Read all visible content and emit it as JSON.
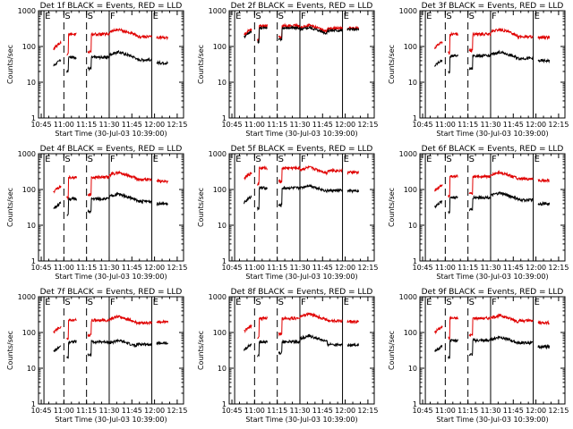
{
  "chart_data": [
    {
      "type": "line",
      "title": "Det 1f BLACK = Events, RED = LLD",
      "detector": "1f",
      "xlabel": "Start Time (30-Jul-03 10:39:00)",
      "ylabel": "Counts/sec",
      "xlim": [
        10.72,
        12.32
      ],
      "ylim": [
        1,
        1000
      ],
      "ylog": true,
      "xticks": [
        "10:45",
        "11:00",
        "11:15",
        "11:30",
        "11:45",
        "12:00",
        "12:15"
      ],
      "yticks": [
        "1",
        "10",
        "100",
        "1000"
      ],
      "series": [
        {
          "name": "Events",
          "color": "#000000",
          "pre": 40,
          "plat": 50,
          "hump": 70,
          "post": 35
        },
        {
          "name": "LLD",
          "color": "#e00000",
          "pre": 120,
          "plat": 220,
          "hump": 300,
          "post": 180
        }
      ],
      "events": [
        {
          "label": "E",
          "t": 10.78,
          "style": "solid"
        },
        {
          "label": "S",
          "t": 11.0,
          "style": "dashed"
        },
        {
          "label": "S",
          "t": 11.25,
          "style": "dashed"
        },
        {
          "label": "F",
          "t": 11.5,
          "style": "solid"
        },
        {
          "label": "E",
          "t": 11.97,
          "style": "solid"
        }
      ]
    },
    {
      "type": "line",
      "title": "Det 2f BLACK = Events, RED = LLD",
      "detector": "2f",
      "xlabel": "Start Time (30-Jul-03 10:39:00)",
      "ylabel": "Counts/sec",
      "xlim": [
        10.72,
        12.32
      ],
      "ylim": [
        1,
        1000
      ],
      "ylog": true,
      "xticks": [
        "10:45",
        "11:00",
        "11:15",
        "11:30",
        "11:45",
        "12:00",
        "12:15"
      ],
      "yticks": [
        "1",
        "10",
        "100",
        "1000"
      ],
      "series": [
        {
          "name": "Events",
          "color": "#000000",
          "pre": 260,
          "plat": 330,
          "hump": 340,
          "post": 300
        },
        {
          "name": "LLD",
          "color": "#e00000",
          "pre": 300,
          "plat": 380,
          "hump": 390,
          "post": 320
        }
      ],
      "events": [
        {
          "label": "E",
          "t": 10.78,
          "style": "solid"
        },
        {
          "label": "S",
          "t": 11.0,
          "style": "dashed"
        },
        {
          "label": "S",
          "t": 11.25,
          "style": "dashed"
        },
        {
          "label": "F",
          "t": 11.5,
          "style": "solid"
        },
        {
          "label": "E",
          "t": 11.97,
          "style": "solid"
        }
      ]
    },
    {
      "type": "line",
      "title": "Det 3f BLACK = Events, RED = LLD",
      "detector": "3f",
      "xlabel": "Start Time (30-Jul-03 10:39:00)",
      "ylabel": "Counts/sec",
      "xlim": [
        10.72,
        12.32
      ],
      "ylim": [
        1,
        1000
      ],
      "ylog": true,
      "xticks": [
        "10:45",
        "11:00",
        "11:15",
        "11:30",
        "11:45",
        "12:00",
        "12:15"
      ],
      "yticks": [
        "1",
        "10",
        "100",
        "1000"
      ],
      "series": [
        {
          "name": "Events",
          "color": "#000000",
          "pre": 40,
          "plat": 55,
          "hump": 70,
          "post": 40
        },
        {
          "name": "LLD",
          "color": "#e00000",
          "pre": 130,
          "plat": 220,
          "hump": 300,
          "post": 180
        }
      ],
      "events": [
        {
          "label": "E",
          "t": 10.78,
          "style": "solid"
        },
        {
          "label": "S",
          "t": 11.0,
          "style": "dashed"
        },
        {
          "label": "S",
          "t": 11.25,
          "style": "dashed"
        },
        {
          "label": "F",
          "t": 11.5,
          "style": "solid"
        },
        {
          "label": "E",
          "t": 11.97,
          "style": "solid"
        }
      ]
    },
    {
      "type": "line",
      "title": "Det 4f BLACK = Events, RED = LLD",
      "detector": "4f",
      "xlabel": "Start Time (30-Jul-03 10:39:00)",
      "ylabel": "Counts/sec",
      "xlim": [
        10.72,
        12.32
      ],
      "ylim": [
        1,
        1000
      ],
      "ylog": true,
      "xticks": [
        "10:45",
        "11:00",
        "11:15",
        "11:30",
        "11:45",
        "12:00",
        "12:15"
      ],
      "yticks": [
        "1",
        "10",
        "100",
        "1000"
      ],
      "series": [
        {
          "name": "Events",
          "color": "#000000",
          "pre": 40,
          "plat": 55,
          "hump": 75,
          "post": 40
        },
        {
          "name": "LLD",
          "color": "#e00000",
          "pre": 120,
          "plat": 220,
          "hump": 300,
          "post": 170
        }
      ],
      "events": [
        {
          "label": "E",
          "t": 10.78,
          "style": "solid"
        },
        {
          "label": "S",
          "t": 11.0,
          "style": "dashed"
        },
        {
          "label": "S",
          "t": 11.25,
          "style": "dashed"
        },
        {
          "label": "F",
          "t": 11.5,
          "style": "solid"
        },
        {
          "label": "E",
          "t": 11.97,
          "style": "solid"
        }
      ]
    },
    {
      "type": "line",
      "title": "Det 5f BLACK = Events, RED = LLD",
      "detector": "5f",
      "xlabel": "Start Time (30-Jul-03 10:39:00)",
      "ylabel": "Counts/sec",
      "xlim": [
        10.72,
        12.32
      ],
      "ylim": [
        1,
        1000
      ],
      "ylog": true,
      "xticks": [
        "10:45",
        "11:00",
        "11:15",
        "11:30",
        "11:45",
        "12:00",
        "12:15"
      ],
      "yticks": [
        "1",
        "10",
        "100",
        "1000"
      ],
      "series": [
        {
          "name": "Events",
          "color": "#000000",
          "pre": 60,
          "plat": 110,
          "hump": 130,
          "post": 90
        },
        {
          "name": "LLD",
          "color": "#e00000",
          "pre": 280,
          "plat": 400,
          "hump": 420,
          "post": 300
        }
      ],
      "events": [
        {
          "label": "E",
          "t": 10.78,
          "style": "solid"
        },
        {
          "label": "S",
          "t": 11.0,
          "style": "dashed"
        },
        {
          "label": "S",
          "t": 11.25,
          "style": "dashed"
        },
        {
          "label": "F",
          "t": 11.5,
          "style": "solid"
        },
        {
          "label": "E",
          "t": 11.97,
          "style": "solid"
        }
      ]
    },
    {
      "type": "line",
      "title": "Det 6f BLACK = Events, RED = LLD",
      "detector": "6f",
      "xlabel": "Start Time (30-Jul-03 10:39:00)",
      "ylabel": "Counts/sec",
      "xlim": [
        10.72,
        12.32
      ],
      "ylim": [
        1,
        1000
      ],
      "ylog": true,
      "xticks": [
        "10:45",
        "11:00",
        "11:15",
        "11:30",
        "11:45",
        "12:00",
        "12:15"
      ],
      "yticks": [
        "1",
        "10",
        "100",
        "1000"
      ],
      "series": [
        {
          "name": "Events",
          "color": "#000000",
          "pre": 45,
          "plat": 60,
          "hump": 80,
          "post": 40
        },
        {
          "name": "LLD",
          "color": "#e00000",
          "pre": 130,
          "plat": 230,
          "hump": 300,
          "post": 180
        }
      ],
      "events": [
        {
          "label": "E",
          "t": 10.78,
          "style": "solid"
        },
        {
          "label": "S",
          "t": 11.0,
          "style": "dashed"
        },
        {
          "label": "S",
          "t": 11.25,
          "style": "dashed"
        },
        {
          "label": "F",
          "t": 11.5,
          "style": "solid"
        },
        {
          "label": "E",
          "t": 11.97,
          "style": "solid"
        }
      ]
    },
    {
      "type": "line",
      "title": "Det 7f BLACK = Events, RED = LLD",
      "detector": "7f",
      "xlabel": "Start Time (30-Jul-03 10:39:00)",
      "ylabel": "Counts/sec",
      "xlim": [
        10.72,
        12.32
      ],
      "ylim": [
        1,
        1000
      ],
      "ylog": true,
      "xticks": [
        "10:45",
        "11:00",
        "11:15",
        "11:30",
        "11:45",
        "12:00",
        "12:15"
      ],
      "yticks": [
        "1",
        "10",
        "100",
        "1000"
      ],
      "series": [
        {
          "name": "Events",
          "color": "#000000",
          "pre": 40,
          "plat": 55,
          "hump": 60,
          "post": 50
        },
        {
          "name": "LLD",
          "color": "#e00000",
          "pre": 140,
          "plat": 220,
          "hump": 280,
          "post": 200
        }
      ],
      "events": [
        {
          "label": "E",
          "t": 10.78,
          "style": "solid"
        },
        {
          "label": "S",
          "t": 11.0,
          "style": "dashed"
        },
        {
          "label": "S",
          "t": 11.25,
          "style": "dashed"
        },
        {
          "label": "F",
          "t": 11.5,
          "style": "solid"
        },
        {
          "label": "E",
          "t": 11.97,
          "style": "solid"
        }
      ]
    },
    {
      "type": "line",
      "title": "Det 8f BLACK = Events, RED = LLD",
      "detector": "8f",
      "xlabel": "Start Time (30-Jul-03 10:39:00)",
      "ylabel": "Counts/sec",
      "xlim": [
        10.72,
        12.32
      ],
      "ylim": [
        1,
        1000
      ],
      "ylog": true,
      "xticks": [
        "10:45",
        "11:00",
        "11:15",
        "11:30",
        "11:45",
        "12:00",
        "12:15"
      ],
      "yticks": [
        "1",
        "10",
        "100",
        "1000"
      ],
      "series": [
        {
          "name": "Events",
          "color": "#000000",
          "pre": 45,
          "plat": 55,
          "hump": 80,
          "post": 45
        },
        {
          "name": "LLD",
          "color": "#e00000",
          "pre": 150,
          "plat": 250,
          "hump": 330,
          "post": 200
        }
      ],
      "events": [
        {
          "label": "E",
          "t": 10.78,
          "style": "solid"
        },
        {
          "label": "S",
          "t": 11.0,
          "style": "dashed"
        },
        {
          "label": "S",
          "t": 11.25,
          "style": "dashed"
        },
        {
          "label": "F",
          "t": 11.5,
          "style": "solid"
        },
        {
          "label": "E",
          "t": 11.97,
          "style": "solid"
        }
      ]
    },
    {
      "type": "line",
      "title": "Det 9f BLACK = Events, RED = LLD",
      "detector": "9f",
      "xlabel": "Start Time (30-Jul-03 10:39:00)",
      "ylabel": "Counts/sec",
      "xlim": [
        10.72,
        12.32
      ],
      "ylim": [
        1,
        1000
      ],
      "ylog": true,
      "xticks": [
        "10:45",
        "11:00",
        "11:15",
        "11:30",
        "11:45",
        "12:00",
        "12:15"
      ],
      "yticks": [
        "1",
        "10",
        "100",
        "1000"
      ],
      "series": [
        {
          "name": "Events",
          "color": "#000000",
          "pre": 40,
          "plat": 60,
          "hump": 75,
          "post": 40
        },
        {
          "name": "LLD",
          "color": "#e00000",
          "pre": 140,
          "plat": 250,
          "hump": 300,
          "post": 190
        }
      ],
      "events": [
        {
          "label": "E",
          "t": 10.78,
          "style": "solid"
        },
        {
          "label": "S",
          "t": 11.0,
          "style": "dashed"
        },
        {
          "label": "S",
          "t": 11.25,
          "style": "dashed"
        },
        {
          "label": "F",
          "t": 11.5,
          "style": "solid"
        },
        {
          "label": "E",
          "t": 11.97,
          "style": "solid"
        }
      ]
    }
  ]
}
